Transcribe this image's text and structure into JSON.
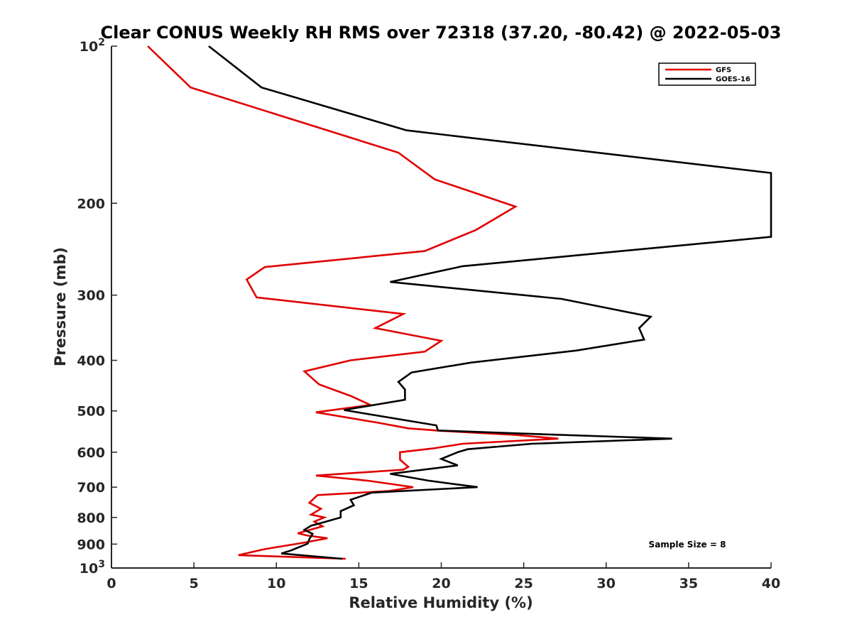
{
  "chart_data": {
    "type": "line",
    "title": "Clear CONUS Weekly RH RMS over 72318 (37.20, -80.42) @ 2022-05-03",
    "xlabel": "Relative Humidity (%)",
    "ylabel": "Pressure (mb)",
    "xlim": [
      0,
      40
    ],
    "ylim": [
      100,
      1000
    ],
    "yscale": "log",
    "y_reversed": true,
    "xticks": [
      0,
      5,
      10,
      15,
      20,
      25,
      30,
      35,
      40
    ],
    "yticks": [
      {
        "value": 100,
        "base": "10",
        "exp": "2"
      },
      {
        "value": 200,
        "label": "200"
      },
      {
        "value": 300,
        "label": "300"
      },
      {
        "value": 400,
        "label": "400"
      },
      {
        "value": 500,
        "label": "500"
      },
      {
        "value": 600,
        "label": "600"
      },
      {
        "value": 700,
        "label": "700"
      },
      {
        "value": 800,
        "label": "800"
      },
      {
        "value": 900,
        "label": "900"
      },
      {
        "value": 1000,
        "base": "10",
        "exp": "3"
      }
    ],
    "grid": false,
    "legend_position": "top-right",
    "series": [
      {
        "name": "GFS",
        "color": "#e00000",
        "points": [
          [
            2.2,
            100
          ],
          [
            4.8,
            120
          ],
          [
            17.4,
            160
          ],
          [
            19.6,
            180
          ],
          [
            24.5,
            203
          ],
          [
            22.1,
            225
          ],
          [
            19.0,
            247
          ],
          [
            9.3,
            265
          ],
          [
            8.2,
            280
          ],
          [
            8.8,
            303
          ],
          [
            17.7,
            326
          ],
          [
            16.0,
            347
          ],
          [
            20.0,
            367
          ],
          [
            19.0,
            385
          ],
          [
            14.5,
            400
          ],
          [
            11.7,
            420
          ],
          [
            12.6,
            445
          ],
          [
            14.5,
            468
          ],
          [
            15.7,
            487
          ],
          [
            12.4,
            503
          ],
          [
            16.2,
            527
          ],
          [
            18.0,
            540
          ],
          [
            20.0,
            546
          ],
          [
            24.5,
            556
          ],
          [
            27.1,
            565
          ],
          [
            21.3,
            578
          ],
          [
            19.5,
            590
          ],
          [
            17.5,
            600
          ],
          [
            17.5,
            620
          ],
          [
            18.0,
            640
          ],
          [
            17.7,
            648
          ],
          [
            12.4,
            665
          ],
          [
            15.5,
            680
          ],
          [
            18.3,
            700
          ],
          [
            16.8,
            712
          ],
          [
            12.5,
            725
          ],
          [
            12.0,
            750
          ],
          [
            12.7,
            770
          ],
          [
            12.1,
            790
          ],
          [
            12.9,
            800
          ],
          [
            12.3,
            815
          ],
          [
            12.8,
            832
          ],
          [
            11.3,
            858
          ],
          [
            11.9,
            867
          ],
          [
            13.1,
            877
          ],
          [
            11.6,
            895
          ],
          [
            9.3,
            920
          ],
          [
            7.7,
            945
          ],
          [
            14.2,
            960
          ]
        ]
      },
      {
        "name": "GOES-16",
        "color": "#000000",
        "points": [
          [
            5.9,
            100
          ],
          [
            9.1,
            120
          ],
          [
            17.9,
            145
          ],
          [
            40.0,
            175
          ],
          [
            40.0,
            232
          ],
          [
            21.3,
            264
          ],
          [
            16.9,
            283
          ],
          [
            27.3,
            305
          ],
          [
            32.7,
            330
          ],
          [
            32.0,
            347
          ],
          [
            32.3,
            365
          ],
          [
            28.2,
            383
          ],
          [
            21.8,
            404
          ],
          [
            18.2,
            422
          ],
          [
            17.4,
            440
          ],
          [
            17.8,
            455
          ],
          [
            17.8,
            476
          ],
          [
            14.1,
            498
          ],
          [
            19.7,
            533
          ],
          [
            19.8,
            545
          ],
          [
            24.5,
            552
          ],
          [
            34.0,
            565
          ],
          [
            25.5,
            578
          ],
          [
            21.6,
            592
          ],
          [
            21.0,
            600
          ],
          [
            20.0,
            618
          ],
          [
            21.0,
            636
          ],
          [
            16.9,
            660
          ],
          [
            19.2,
            680
          ],
          [
            22.2,
            700
          ],
          [
            15.8,
            717
          ],
          [
            14.5,
            740
          ],
          [
            14.7,
            758
          ],
          [
            13.9,
            778
          ],
          [
            13.9,
            800
          ],
          [
            13.0,
            815
          ],
          [
            12.1,
            830
          ],
          [
            11.7,
            845
          ],
          [
            12.2,
            860
          ],
          [
            12.0,
            880
          ],
          [
            11.9,
            898
          ],
          [
            10.9,
            925
          ],
          [
            10.3,
            938
          ],
          [
            14.0,
            960
          ]
        ]
      }
    ],
    "annotations": [
      {
        "text": "Sample Size = 8"
      }
    ]
  }
}
